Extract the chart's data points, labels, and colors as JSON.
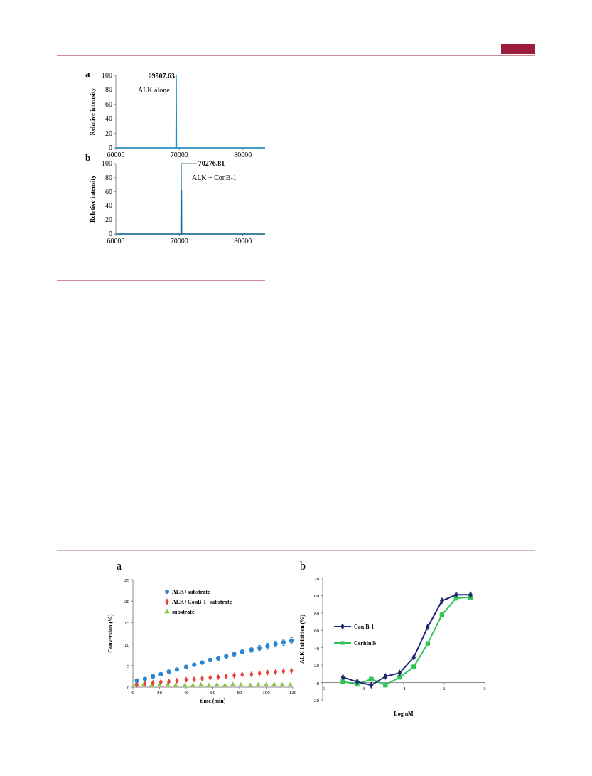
{
  "chart_data": [
    {
      "type": "line",
      "title": "a",
      "ylabel": "Relative intensity",
      "xlim": [
        60000,
        83500
      ],
      "xticks": [
        60000,
        70000,
        80000
      ],
      "ylim": [
        0,
        100
      ],
      "yticks": [
        0,
        20,
        40,
        60,
        80,
        100
      ],
      "series": [
        {
          "color": "#1b8fc6",
          "x": [
            60000,
            69460,
            69507.63,
            69560,
            83500
          ],
          "values": [
            0,
            0,
            100,
            0,
            0
          ]
        }
      ],
      "annotations": [
        {
          "text": "69507.63",
          "x": 69507.63,
          "y": 100
        },
        "ALK alone"
      ]
    },
    {
      "type": "line",
      "title": "b",
      "ylabel": "Relative intensity",
      "xlim": [
        60000,
        83500
      ],
      "xticks": [
        60000,
        70000,
        80000
      ],
      "ylim": [
        0,
        100
      ],
      "yticks": [
        0,
        20,
        40,
        60,
        80,
        100
      ],
      "series": [
        {
          "color": "#1a6f9a",
          "x": [
            60000,
            70240,
            70276.81,
            70310,
            70345,
            70380,
            83500
          ],
          "values": [
            0,
            0,
            100,
            0,
            62,
            0,
            0
          ]
        }
      ],
      "annotations": [
        {
          "text": "70276.81",
          "x": 70276.81,
          "y": 100
        },
        "ALK + ConB-1"
      ]
    },
    {
      "type": "scatter",
      "title": "a",
      "xlabel": "time (min)",
      "ylabel": "Conversion (%)",
      "xlim": [
        0,
        120
      ],
      "xticks": [
        0,
        20,
        40,
        60,
        80,
        100,
        120
      ],
      "ylim": [
        0,
        25
      ],
      "yticks": [
        0,
        5,
        10,
        15,
        20,
        25
      ],
      "legend": "top",
      "x": [
        3,
        9,
        15,
        21,
        27,
        33,
        40,
        46,
        52,
        58,
        64,
        70,
        76,
        82,
        89,
        95,
        101,
        107,
        113,
        119
      ],
      "series": [
        {
          "name": "ALK+substrate",
          "color": "#2e86d1",
          "marker": "circle",
          "values": [
            1.5,
            1.9,
            2.5,
            3.0,
            3.6,
            4.1,
            4.7,
            5.2,
            5.7,
            6.3,
            6.7,
            7.2,
            7.7,
            8.2,
            8.7,
            9.1,
            9.5,
            10.0,
            10.4,
            10.8
          ],
          "errors": [
            null,
            null,
            null,
            null,
            null,
            null,
            null,
            null,
            null,
            null,
            0.5,
            0.5,
            0.5,
            0.5,
            0.6,
            0.6,
            0.7,
            0.7,
            0.7,
            0.7
          ]
        },
        {
          "name": "ALK+ConB-1+substrate",
          "color": "#e8413c",
          "marker": "diamond",
          "values": [
            0.6,
            0.8,
            1.0,
            1.2,
            1.3,
            1.5,
            1.7,
            1.8,
            2.0,
            2.2,
            2.3,
            2.5,
            2.7,
            2.9,
            3.0,
            3.2,
            3.4,
            3.5,
            3.7,
            3.8
          ]
        },
        {
          "name": "substrate",
          "color": "#8cc63f",
          "marker": "triangle",
          "x": [
            2,
            8,
            14,
            20,
            26,
            32,
            39,
            45,
            51,
            57,
            63,
            69,
            75,
            81,
            88,
            94,
            100,
            106,
            112,
            118
          ],
          "values": [
            0.5,
            0.5,
            0.4,
            0.5,
            0.5,
            0.4,
            0.4,
            0.4,
            0.5,
            0.4,
            0.5,
            0.4,
            0.6,
            0.5,
            0.4,
            0.5,
            0.5,
            0.6,
            0.5,
            0.5
          ]
        }
      ]
    },
    {
      "type": "line",
      "title": "b",
      "xlabel": "Log nM",
      "ylabel": "ALK Inhibition (%)",
      "xlim": [
        -5,
        3
      ],
      "xticks": [
        -5,
        -3,
        -1,
        1,
        3
      ],
      "ylim": [
        -20,
        120
      ],
      "yticks": [
        -20,
        0,
        20,
        40,
        60,
        80,
        100,
        120
      ],
      "legend": "left",
      "x": [
        -4.0,
        -3.3,
        -2.6,
        -1.9,
        -1.2,
        -0.5,
        0.19,
        0.89,
        1.59,
        2.3
      ],
      "series": [
        {
          "name": "Con B-1",
          "color": "#1c2b6e",
          "marker": "diamond",
          "values": [
            6,
            1,
            -3,
            7,
            11,
            29,
            64,
            94,
            101,
            101
          ]
        },
        {
          "name": "Ceritinib",
          "color": "#2fc458",
          "marker": "square",
          "values": [
            1,
            -2,
            4,
            -3,
            6,
            18,
            45,
            78,
            97,
            98
          ]
        }
      ]
    }
  ]
}
